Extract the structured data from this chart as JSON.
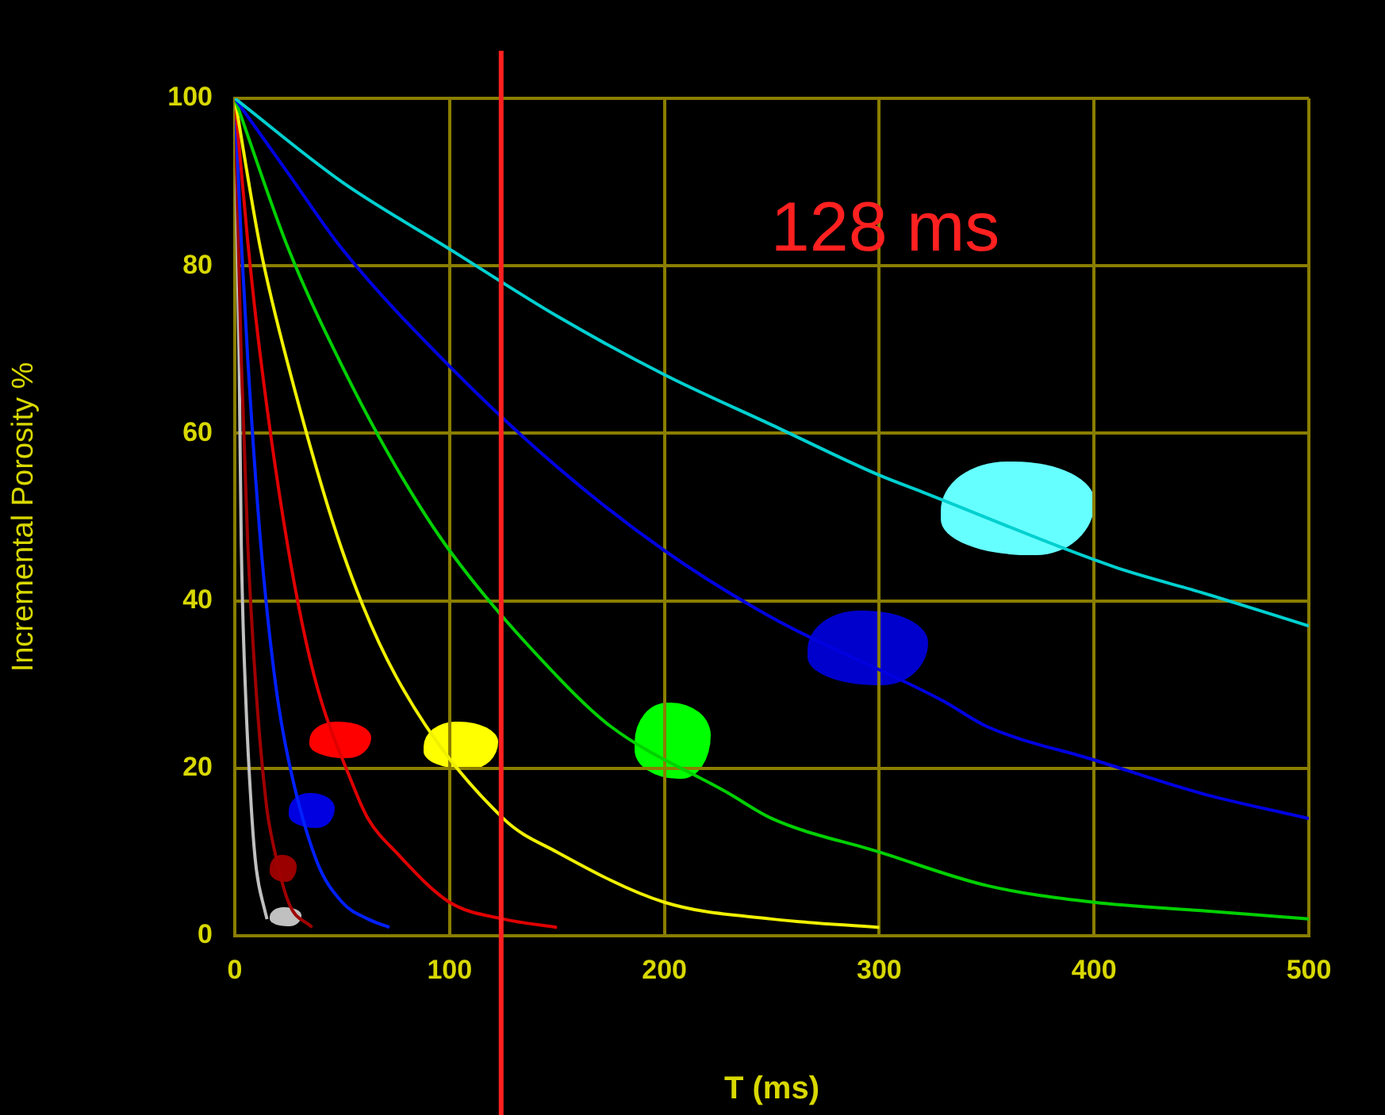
{
  "chart_data": {
    "type": "line",
    "xlabel": "T (ms)",
    "ylabel": "Incremental Porosity %",
    "xlim": [
      0,
      500
    ],
    "xticks": [
      0,
      100,
      200,
      300,
      400,
      500
    ],
    "ylim": [
      0,
      100
    ],
    "yticks": [
      0,
      20,
      40,
      60,
      80,
      100
    ],
    "grid": true,
    "legend": false,
    "marker": "none",
    "line_style": "solid",
    "series": [
      {
        "color": "#00d0d0",
        "x": [
          0,
          50,
          100,
          150,
          200,
          250,
          300,
          320,
          410,
          450,
          500
        ],
        "values": [
          100,
          90,
          82,
          74,
          67,
          61,
          55,
          53,
          44,
          41,
          37
        ]
      },
      {
        "color": "#0000e0",
        "x": [
          0,
          25,
          50,
          100,
          150,
          200,
          250,
          330,
          350,
          400,
          450,
          500
        ],
        "values": [
          100,
          91,
          82,
          68,
          56,
          46,
          38,
          28,
          25,
          21,
          17,
          14
        ]
      },
      {
        "color": "#00d000",
        "x": [
          0,
          25,
          50,
          75,
          100,
          150,
          175,
          230,
          250,
          300,
          350,
          400,
          450,
          500
        ],
        "values": [
          100,
          82,
          68,
          56,
          46,
          31,
          25,
          17,
          14,
          10,
          6,
          4,
          3,
          2
        ]
      },
      {
        "color": "#f0f000",
        "x": [
          0,
          12,
          25,
          50,
          75,
          125,
          150,
          200,
          250,
          300
        ],
        "values": [
          100,
          82,
          68,
          46,
          31,
          14,
          10,
          4,
          2,
          1
        ]
      },
      {
        "color": "#e00000",
        "x": [
          0,
          6,
          12,
          25,
          37,
          55,
          62,
          75,
          100,
          125,
          150
        ],
        "values": [
          100,
          83,
          69,
          46,
          31,
          18,
          14,
          10,
          4,
          2,
          1
        ]
      },
      {
        "color": "#0020ff",
        "x": [
          0,
          3,
          6,
          12,
          19,
          25,
          38,
          50,
          62,
          72
        ],
        "values": [
          100,
          83,
          69,
          47,
          30,
          21,
          9,
          4,
          2,
          1
        ]
      },
      {
        "color": "#a00000",
        "x": [
          0,
          3,
          6,
          10,
          15,
          17,
          25,
          36
        ],
        "values": [
          100,
          69,
          47,
          29,
          15,
          12,
          4,
          1
        ]
      },
      {
        "color": "#c0c0c0",
        "x": [
          0,
          2,
          3,
          5,
          8,
          10,
          14,
          15
        ],
        "values": [
          100,
          69,
          47,
          29,
          14,
          8,
          3,
          2
        ]
      }
    ],
    "ref_lines": [
      {
        "axis": "x",
        "value": 124,
        "label": "128 ms",
        "color": "#ff2020"
      }
    ]
  }
}
